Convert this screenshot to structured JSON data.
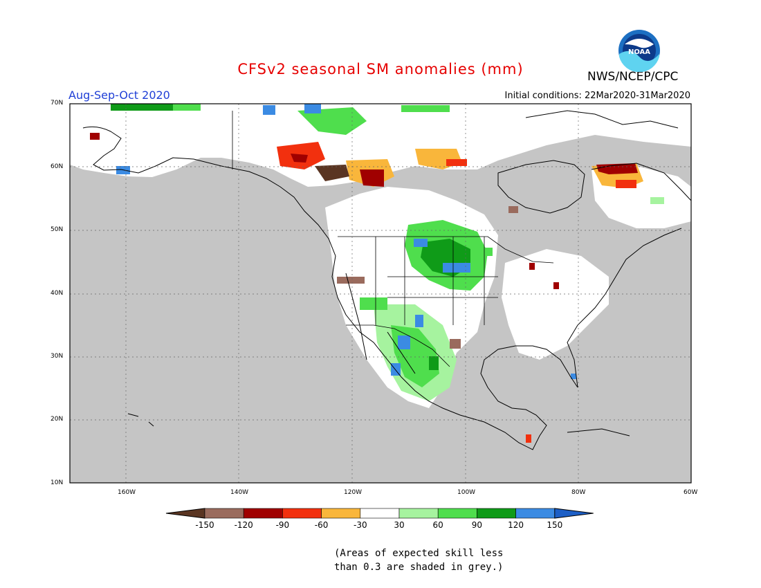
{
  "title": "CFSv2 seasonal SM anomalies (mm)",
  "agency": "NWS/NCEP/CPC",
  "season": "Aug-Sep-Oct 2020",
  "initial_conditions": "Initial conditions: 22Mar2020-31Mar2020",
  "caption": [
    "(Areas of expected skill less",
    "than 0.3 are shaded in grey.)"
  ],
  "logo_text": "NOAA",
  "lat_labels": [
    "70N",
    "60N",
    "50N",
    "40N",
    "30N",
    "20N",
    "10N"
  ],
  "lon_labels": [
    "160W",
    "140W",
    "120W",
    "100W",
    "80W",
    "60W"
  ],
  "colorbar": {
    "tick_labels": [
      "-150",
      "-120",
      "-90",
      "-60",
      "-30",
      "30",
      "60",
      "90",
      "120",
      "150"
    ],
    "colors": [
      "#5a3522",
      "#9a6b5d",
      "#a00000",
      "#f2300e",
      "#f9b63b",
      "#ffffff",
      "#a6f39f",
      "#4fde4d",
      "#0f9b18",
      "#3b8be3",
      "#1d5fc6"
    ]
  },
  "colors": {
    "no_skill_grey": "#c5c5c5",
    "map_background": "#ffffff",
    "title_red": "#e60000",
    "season_blue": "#1f3fd6"
  }
}
